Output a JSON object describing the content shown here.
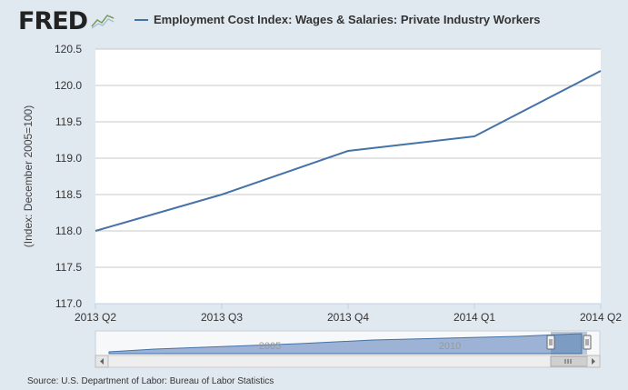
{
  "logo": {
    "text": "FRED",
    "graph_icon": "line-graph-icon"
  },
  "legend": {
    "label": "Employment Cost Index: Wages & Salaries: Private Industry Workers"
  },
  "source": "Source: U.S. Department of Labor: Bureau of Labor Statistics",
  "navigator": {
    "year_labels": [
      "2005",
      "2010"
    ],
    "scroll_left_icon": "chevron-left-icon",
    "scroll_right_icon": "chevron-right-icon",
    "grip_icon": "grip-icon",
    "handle_icon": "grip-handle-icon"
  },
  "colors": {
    "series": "#4572a7",
    "background": "#e1e9f0",
    "plot_background": "#ffffff",
    "grid": "#c8c8c8",
    "navigator_fill": "#91abd0"
  },
  "chart_data": {
    "type": "line",
    "title": "",
    "xlabel": "",
    "ylabel": "(Index: December 2005=100)",
    "categories": [
      "2013 Q2",
      "2013 Q3",
      "2013 Q4",
      "2014 Q1",
      "2014 Q2"
    ],
    "series": [
      {
        "name": "Employment Cost Index: Wages & Salaries: Private Industry Workers",
        "values": [
          118.0,
          118.5,
          119.1,
          119.3,
          120.2
        ]
      }
    ],
    "ylim": [
      117.0,
      120.5
    ],
    "yticks": [
      "117.0",
      "117.5",
      "118.0",
      "118.5",
      "119.0",
      "119.5",
      "120.0",
      "120.5"
    ],
    "grid": true,
    "legend_position": "top"
  }
}
